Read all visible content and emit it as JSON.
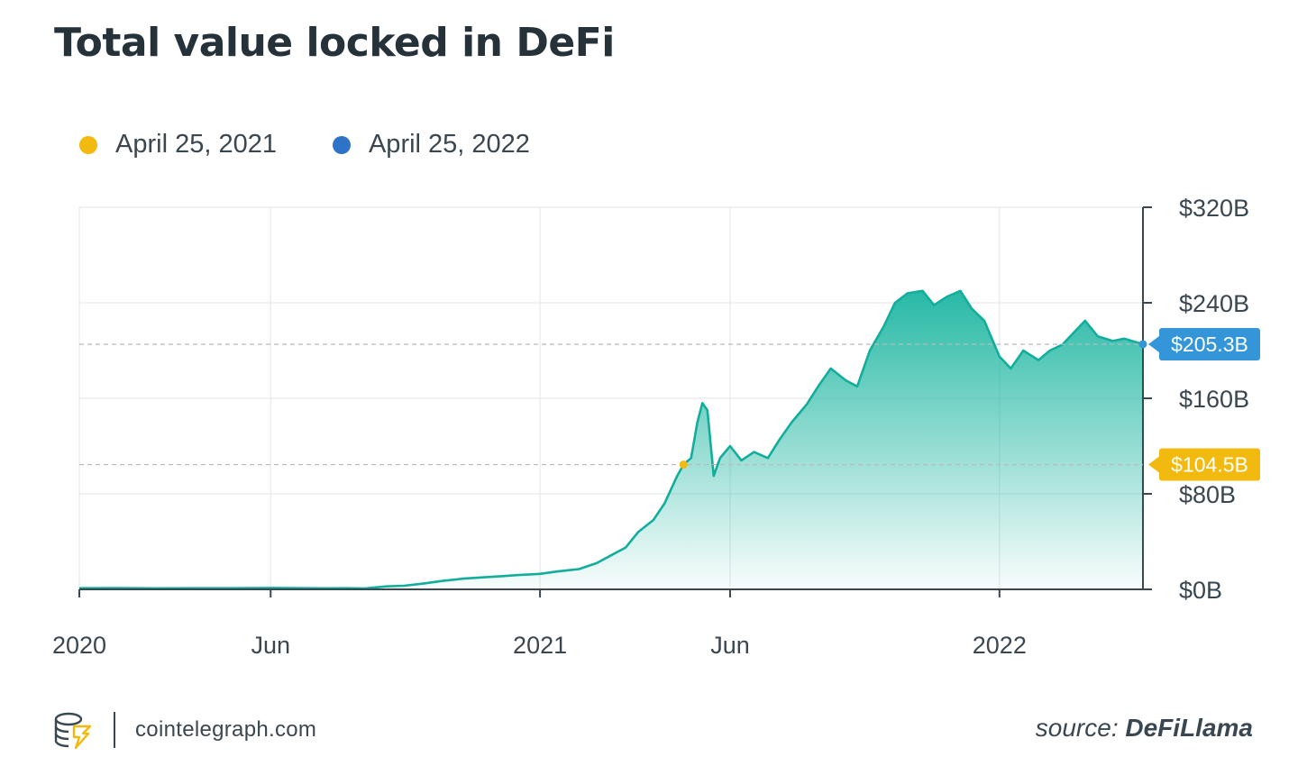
{
  "title": "Total value locked in DeFi",
  "legend": [
    {
      "label": "April 25, 2021",
      "color": "#f2b90f"
    },
    {
      "label": "April 25, 2022",
      "color": "#2f73c9"
    }
  ],
  "colors": {
    "line": "#13ad9b",
    "fill": "#27b9a5",
    "marker_2021": "#f2b90f",
    "marker_2022": "#3496d8"
  },
  "footer": {
    "site": "cointelegraph.com",
    "source_prefix": "source:",
    "source_name": "DeFiLlama",
    "logo_icon": "cointelegraph-logo-icon"
  },
  "chart_data": {
    "type": "area",
    "title": "Total value locked in DeFi",
    "y_unit": "billions USD",
    "ylim": [
      0,
      320
    ],
    "y_ticks": [
      0,
      80,
      160,
      240,
      320
    ],
    "y_tick_labels": [
      "$0B",
      "$80B",
      "$160B",
      "$240B",
      "$320B"
    ],
    "xlim": [
      "2020-01-01",
      "2022-04-25"
    ],
    "x_ticks": [
      "2020-01-01",
      "2020-06-01",
      "2021-01-01",
      "2021-06-01",
      "2022-01-01"
    ],
    "x_tick_labels": [
      "2020",
      "Jun",
      "2021",
      "Jun",
      "2022"
    ],
    "grid": true,
    "legend_position": "top-left",
    "series": [
      {
        "x": [
          "2020-01-01",
          "2020-02-01",
          "2020-03-01",
          "2020-04-01",
          "2020-05-01",
          "2020-06-01",
          "2020-07-01",
          "2020-07-15",
          "2020-08-01",
          "2020-08-15",
          "2020-09-01",
          "2020-09-15",
          "2020-10-01",
          "2020-10-15",
          "2020-11-01",
          "2020-11-15",
          "2020-12-01",
          "2020-12-15",
          "2021-01-01",
          "2021-01-15",
          "2021-02-01",
          "2021-02-15",
          "2021-03-01",
          "2021-03-10",
          "2021-03-20",
          "2021-04-01",
          "2021-04-10",
          "2021-04-20",
          "2021-04-25",
          "2021-05-01",
          "2021-05-06",
          "2021-05-10",
          "2021-05-14",
          "2021-05-19",
          "2021-05-24",
          "2021-06-01",
          "2021-06-10",
          "2021-06-20",
          "2021-07-01",
          "2021-07-10",
          "2021-07-20",
          "2021-08-01",
          "2021-08-10",
          "2021-08-20",
          "2021-09-01",
          "2021-09-10",
          "2021-09-20",
          "2021-10-01",
          "2021-10-10",
          "2021-10-20",
          "2021-11-01",
          "2021-11-10",
          "2021-11-20",
          "2021-12-01",
          "2021-12-10",
          "2021-12-20",
          "2022-01-01",
          "2022-01-10",
          "2022-01-20",
          "2022-02-01",
          "2022-02-10",
          "2022-02-20",
          "2022-03-01",
          "2022-03-10",
          "2022-03-20",
          "2022-04-01",
          "2022-04-10",
          "2022-04-25"
        ],
        "values": [
          1.0,
          1.1,
          0.9,
          1.0,
          1.0,
          1.2,
          1.0,
          0.9,
          1.0,
          0.8,
          2.5,
          3.0,
          5.0,
          7.0,
          9.0,
          10.0,
          11.0,
          12.0,
          13.0,
          15.0,
          17.0,
          22.0,
          30.0,
          35.0,
          48.0,
          58.0,
          72.0,
          95.0,
          104.5,
          110.0,
          140.0,
          156.0,
          150.0,
          95.0,
          110.0,
          120.0,
          108.0,
          115.0,
          110.0,
          125.0,
          140.0,
          155.0,
          170.0,
          185.0,
          175.0,
          170.0,
          200.0,
          220.0,
          240.0,
          248.0,
          250.0,
          238.0,
          245.0,
          250.0,
          235.0,
          225.0,
          195.0,
          185.0,
          200.0,
          192.0,
          200.0,
          205.0,
          215.0,
          225.0,
          212.0,
          208.0,
          210.0,
          205.3
        ]
      }
    ],
    "highlights": [
      {
        "date": "2021-04-25",
        "value": 104.5,
        "label": "$104.5B",
        "color": "#f2b90f"
      },
      {
        "date": "2022-04-25",
        "value": 205.3,
        "label": "$205.3B",
        "color": "#3496d8"
      }
    ]
  }
}
